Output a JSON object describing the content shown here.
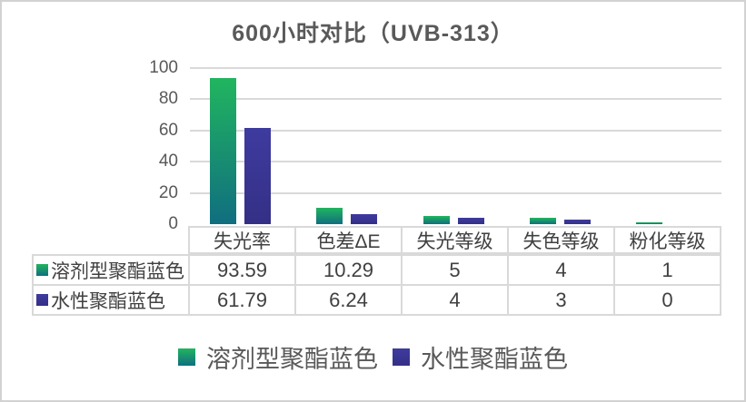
{
  "title": "600小时对比（UVB-313）",
  "chart_data": {
    "type": "bar",
    "title": "600小时对比（UVB-313）",
    "categories": [
      "失光率",
      "色差ΔE",
      "失光等级",
      "失色等级",
      "粉化等级"
    ],
    "series": [
      {
        "name": "溶剂型聚酯蓝色",
        "values": [
          93.59,
          10.29,
          5,
          4,
          1
        ],
        "display_values": [
          "93.59",
          "10.29",
          "5",
          "4",
          "1"
        ],
        "color_top": "#21b55f",
        "color_bottom": "#106e80"
      },
      {
        "name": "水性聚酯蓝色",
        "values": [
          61.79,
          6.24,
          4,
          3,
          0
        ],
        "display_values": [
          "61.79",
          "6.24",
          "4",
          "3",
          "0"
        ],
        "color_top": "#3e3b9f",
        "color_bottom": "#343086"
      }
    ],
    "xlabel": "",
    "ylabel": "",
    "ylim": [
      0,
      100
    ],
    "yticks": [
      0,
      20,
      40,
      60,
      80,
      100
    ],
    "grid": true,
    "legend_position": "bottom",
    "data_table_shown": true
  },
  "colors": {
    "title_text": "#595959",
    "axis_text": "#595959",
    "table_text": "#404040",
    "gridline": "#d9d9d9",
    "table_border": "#d9d9d9",
    "frame_border": "#d2d2d2",
    "background": "#ffffff"
  }
}
